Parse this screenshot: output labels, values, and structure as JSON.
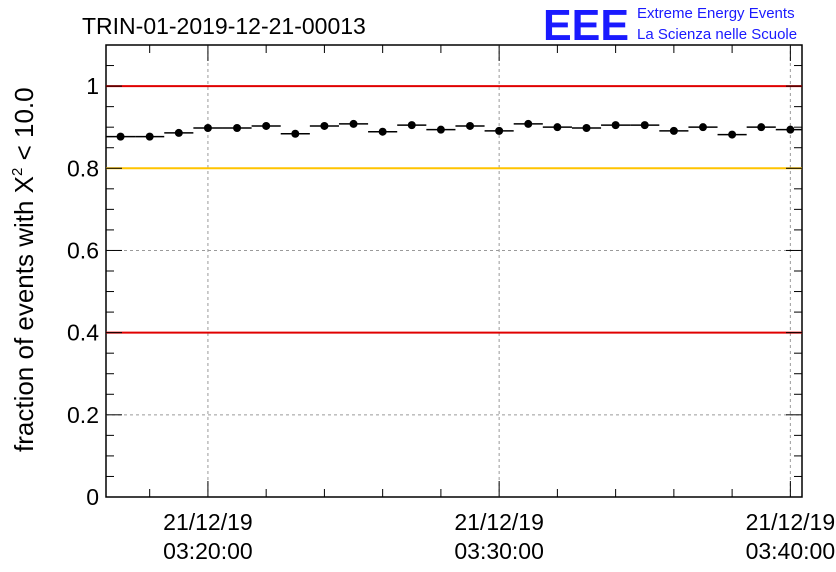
{
  "logo": {
    "mark": "EEE",
    "line1": "Extreme Energy Events",
    "line2": "La Scienza nelle Scuole"
  },
  "colors": {
    "red_line": "#e00000",
    "yellow_line": "#ffc400",
    "grid": "#9a9a9a",
    "logo": "#1a1aff"
  },
  "chart_data": {
    "type": "scatter",
    "title": "TRIN-01-2019-12-21-00013",
    "ylabel_prefix": "fraction of events with X",
    "ylabel_sup": "2",
    "ylabel_suffix": " < 10.0",
    "ylim": [
      0,
      1.1
    ],
    "xlim_minutes": [
      16.5,
      40.4
    ],
    "yticks": [
      {
        "value": 0,
        "label": "0"
      },
      {
        "value": 0.2,
        "label": "0.2"
      },
      {
        "value": 0.4,
        "label": "0.4"
      },
      {
        "value": 0.6,
        "label": "0.6"
      },
      {
        "value": 0.8,
        "label": "0.8"
      },
      {
        "value": 1.0,
        "label": "1"
      }
    ],
    "xticks": [
      {
        "minute": 20,
        "date": "21/12/19",
        "time": "03:20:00"
      },
      {
        "minute": 30,
        "date": "21/12/19",
        "time": "03:30:00"
      },
      {
        "minute": 40,
        "date": "21/12/19",
        "time": "03:40:00"
      }
    ],
    "reference_lines": [
      {
        "y": 1.0,
        "color": "#e00000"
      },
      {
        "y": 0.8,
        "color": "#ffc400"
      },
      {
        "y": 0.4,
        "color": "#e00000"
      }
    ],
    "bin_width_minutes": 1.0,
    "series": [
      {
        "name": "fraction",
        "x_minutes": [
          17,
          18,
          19,
          20,
          21,
          22,
          23,
          24,
          25,
          26,
          27,
          28,
          29,
          30,
          31,
          32,
          33,
          34,
          35,
          36,
          37,
          38,
          39,
          40
        ],
        "values": [
          0.877,
          0.877,
          0.886,
          0.898,
          0.898,
          0.903,
          0.884,
          0.903,
          0.908,
          0.889,
          0.905,
          0.894,
          0.903,
          0.891,
          0.908,
          0.9,
          0.898,
          0.905,
          0.905,
          0.891,
          0.9,
          0.882,
          0.9,
          0.894
        ]
      }
    ]
  }
}
